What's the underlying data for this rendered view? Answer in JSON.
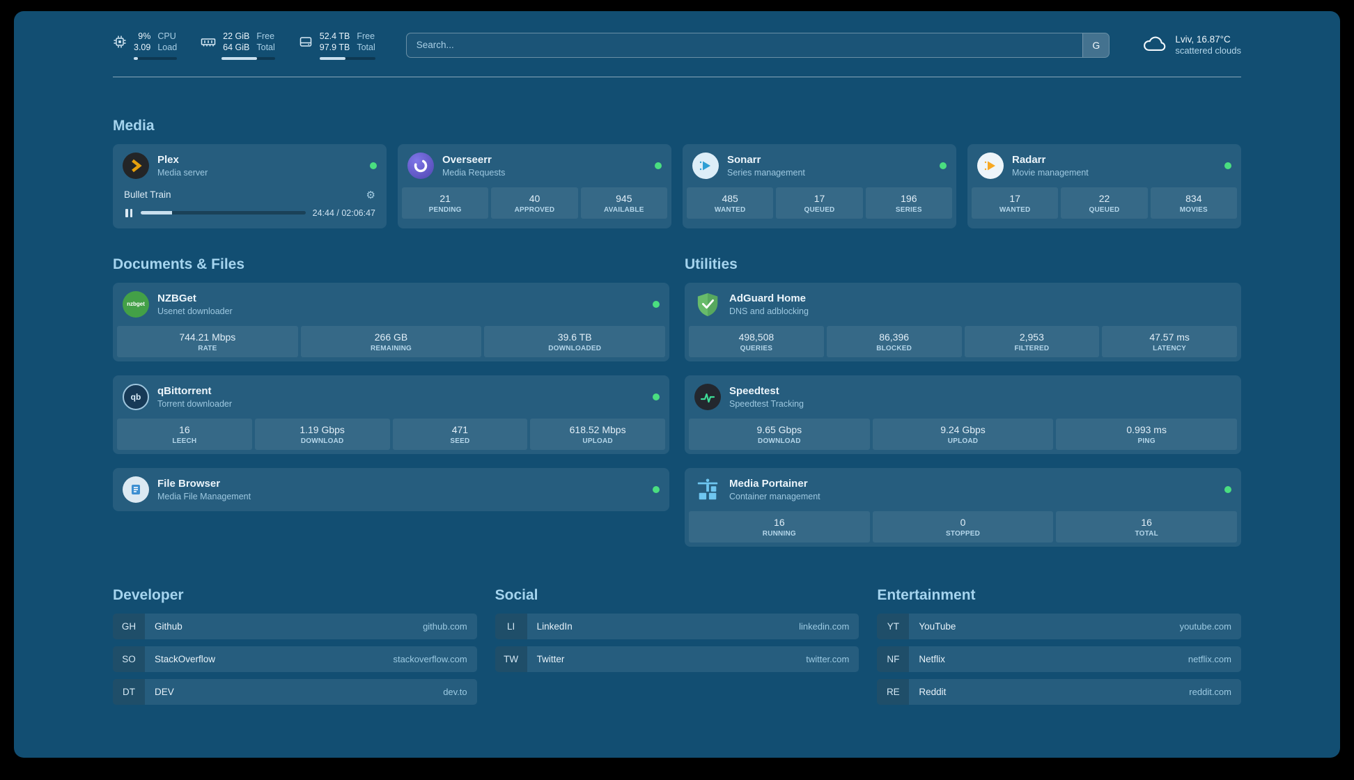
{
  "topbar": {
    "resources": [
      {
        "values": [
          "9%",
          "3.09"
        ],
        "labels": [
          "CPU",
          "Load"
        ],
        "percent": 9
      },
      {
        "values": [
          "22 GiB",
          "64 GiB"
        ],
        "labels": [
          "Free",
          "Total"
        ],
        "percent": 66
      },
      {
        "values": [
          "52.4 TB",
          "97.9 TB"
        ],
        "labels": [
          "Free",
          "Total"
        ],
        "percent": 46
      }
    ],
    "search": {
      "placeholder": "Search...",
      "button_label": "G"
    },
    "weather": {
      "location": "Lviv, 16.87°C",
      "condition": "scattered clouds"
    }
  },
  "sections": {
    "media": {
      "heading": "Media"
    },
    "documents": {
      "heading": "Documents & Files"
    },
    "utilities": {
      "heading": "Utilities"
    }
  },
  "services": {
    "plex": {
      "title": "Plex",
      "subtitle": "Media server",
      "now_playing": "Bullet Train",
      "time": "24:44 / 02:06:47",
      "progress_percent": 19
    },
    "overseerr": {
      "title": "Overseerr",
      "subtitle": "Media Requests",
      "stats": [
        {
          "value": "21",
          "label": "PENDING"
        },
        {
          "value": "40",
          "label": "APPROVED"
        },
        {
          "value": "945",
          "label": "AVAILABLE"
        }
      ]
    },
    "sonarr": {
      "title": "Sonarr",
      "subtitle": "Series management",
      "stats": [
        {
          "value": "485",
          "label": "WANTED"
        },
        {
          "value": "17",
          "label": "QUEUED"
        },
        {
          "value": "196",
          "label": "SERIES"
        }
      ]
    },
    "radarr": {
      "title": "Radarr",
      "subtitle": "Movie management",
      "stats": [
        {
          "value": "17",
          "label": "WANTED"
        },
        {
          "value": "22",
          "label": "QUEUED"
        },
        {
          "value": "834",
          "label": "MOVIES"
        }
      ]
    },
    "nzbget": {
      "title": "NZBGet",
      "subtitle": "Usenet downloader",
      "icon_text": "nzbget",
      "stats": [
        {
          "value": "744.21 Mbps",
          "label": "RATE"
        },
        {
          "value": "266 GB",
          "label": "REMAINING"
        },
        {
          "value": "39.6 TB",
          "label": "DOWNLOADED"
        }
      ]
    },
    "qbittorrent": {
      "title": "qBittorrent",
      "subtitle": "Torrent downloader",
      "icon_text": "qb",
      "stats": [
        {
          "value": "16",
          "label": "LEECH"
        },
        {
          "value": "1.19 Gbps",
          "label": "DOWNLOAD"
        },
        {
          "value": "471",
          "label": "SEED"
        },
        {
          "value": "618.52 Mbps",
          "label": "UPLOAD"
        }
      ]
    },
    "filebrowser": {
      "title": "File Browser",
      "subtitle": "Media File Management"
    },
    "adguard": {
      "title": "AdGuard Home",
      "subtitle": "DNS and adblocking",
      "stats": [
        {
          "value": "498,508",
          "label": "QUERIES"
        },
        {
          "value": "86,396",
          "label": "BLOCKED"
        },
        {
          "value": "2,953",
          "label": "FILTERED"
        },
        {
          "value": "47.57 ms",
          "label": "LATENCY"
        }
      ]
    },
    "speedtest": {
      "title": "Speedtest",
      "subtitle": "Speedtest Tracking",
      "stats": [
        {
          "value": "9.65 Gbps",
          "label": "DOWNLOAD"
        },
        {
          "value": "9.24 Gbps",
          "label": "UPLOAD"
        },
        {
          "value": "0.993 ms",
          "label": "PING"
        }
      ]
    },
    "portainer": {
      "title": "Media Portainer",
      "subtitle": "Container management",
      "stats": [
        {
          "value": "16",
          "label": "RUNNING"
        },
        {
          "value": "0",
          "label": "STOPPED"
        },
        {
          "value": "16",
          "label": "TOTAL"
        }
      ]
    }
  },
  "bookmarks": [
    {
      "heading": "Developer",
      "items": [
        {
          "abbr": "GH",
          "name": "Github",
          "domain": "github.com"
        },
        {
          "abbr": "SO",
          "name": "StackOverflow",
          "domain": "stackoverflow.com"
        },
        {
          "abbr": "DT",
          "name": "DEV",
          "domain": "dev.to"
        }
      ]
    },
    {
      "heading": "Social",
      "items": [
        {
          "abbr": "LI",
          "name": "LinkedIn",
          "domain": "linkedin.com"
        },
        {
          "abbr": "TW",
          "name": "Twitter",
          "domain": "twitter.com"
        }
      ]
    },
    {
      "heading": "Entertainment",
      "items": [
        {
          "abbr": "YT",
          "name": "YouTube",
          "domain": "youtube.com"
        },
        {
          "abbr": "NF",
          "name": "Netflix",
          "domain": "netflix.com"
        },
        {
          "abbr": "RE",
          "name": "Reddit",
          "domain": "reddit.com"
        }
      ]
    }
  ],
  "colors": {
    "status_online": "#4ade80",
    "plex_accent": "#e5a00d"
  }
}
